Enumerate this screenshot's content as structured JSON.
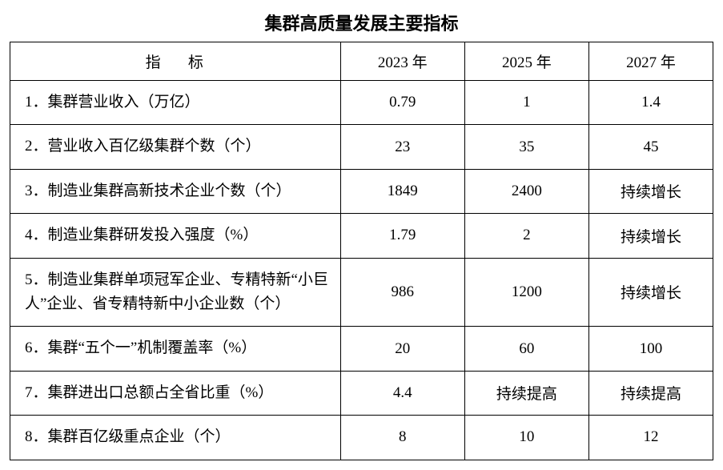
{
  "title": "集群高质量发展主要指标",
  "columns": {
    "indicator": "指标",
    "y2023": "2023 年",
    "y2025": "2025 年",
    "y2027": "2027 年"
  },
  "rows": [
    {
      "indicator": "1．集群营业收入（万亿）",
      "y2023": "0.79",
      "y2025": "1",
      "y2027": "1.4"
    },
    {
      "indicator": "2．营业收入百亿级集群个数（个）",
      "y2023": "23",
      "y2025": "35",
      "y2027": "45"
    },
    {
      "indicator": "3．制造业集群高新技术企业个数（个）",
      "y2023": "1849",
      "y2025": "2400",
      "y2027": "持续增长"
    },
    {
      "indicator": "4．制造业集群研发投入强度（%）",
      "y2023": "1.79",
      "y2025": "2",
      "y2027": "持续增长"
    },
    {
      "indicator": "5．制造业集群单项冠军企业、专精特新“小巨人”企业、省专精特新中小企业数（个）",
      "y2023": "986",
      "y2025": "1200",
      "y2027": "持续增长"
    },
    {
      "indicator": "6．集群“五个一”机制覆盖率（%）",
      "y2023": "20",
      "y2025": "60",
      "y2027": "100"
    },
    {
      "indicator": "7．集群进出口总额占全省比重（%）",
      "y2023": "4.4",
      "y2025": "持续提高",
      "y2027": "持续提高"
    },
    {
      "indicator": "8．集群百亿级重点企业（个）",
      "y2023": "8",
      "y2025": "10",
      "y2027": "12"
    }
  ],
  "style": {
    "title_fontsize": 22,
    "cell_fontsize": 19,
    "border_color": "#000000",
    "background_color": "#ffffff",
    "text_color": "#000000",
    "col_widths_pct": [
      47,
      17.66,
      17.66,
      17.66
    ]
  }
}
